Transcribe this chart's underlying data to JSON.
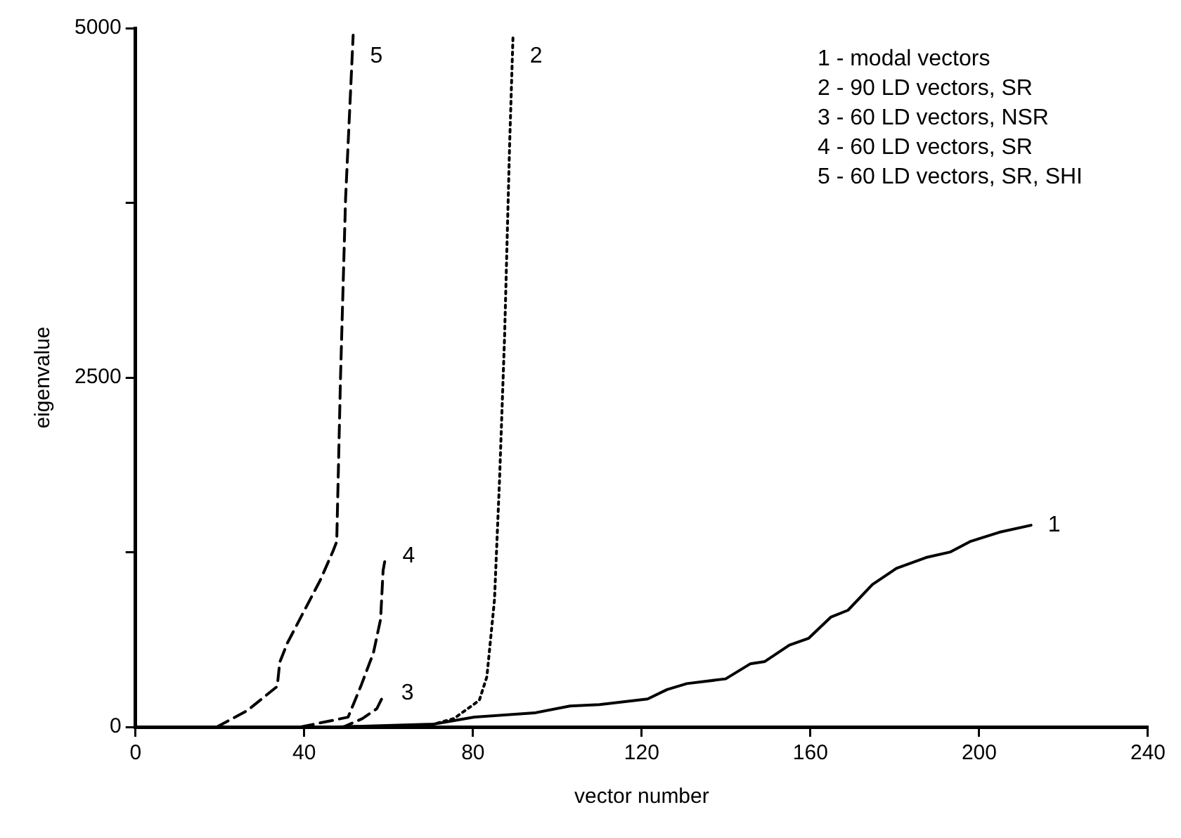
{
  "chart_data": {
    "type": "line",
    "xlabel": "vector number",
    "ylabel": "eigenvalue",
    "xlim": [
      0,
      240
    ],
    "ylim": [
      0,
      5000
    ],
    "xticks": [
      0,
      40,
      80,
      120,
      160,
      200,
      240
    ],
    "yticks": [
      0,
      {
        "value": 1250,
        "label": null
      },
      2500,
      {
        "value": 3750,
        "label": null
      },
      5000
    ],
    "grid": false,
    "legend": false,
    "marker": "none",
    "annotations": [
      "1 - modal vectors",
      "2 - 90 LD vectors, SR",
      "3 - 60 LD vectors, NSR",
      "4 - 60 LD vectors, SR",
      "5 - 60 LD vectors, SR, SHI"
    ],
    "series": [
      {
        "name": "1",
        "color": "#000000",
        "line_style": "solid",
        "x": [
          47.8,
          70.7,
          80.3,
          94.6,
          103,
          110,
          121.4,
          126,
          130.7,
          139.9,
          145.7,
          149.2,
          155,
          159.6,
          164.8,
          168.9,
          174.7,
          180.4,
          187.4,
          193.2,
          197.8,
          204.8,
          212.3
        ],
        "values": [
          0,
          20,
          70,
          100,
          150,
          160,
          200,
          267,
          310,
          344,
          451,
          468,
          585,
          635,
          785,
          835,
          1019,
          1135,
          1212,
          1252,
          1326,
          1393,
          1443
        ]
      },
      {
        "name": "2",
        "color": "#000000",
        "line_style": "dotted",
        "x": [
          68.3,
          75.5,
          81.5,
          83.3,
          85.1,
          86.3,
          87.5,
          88.7,
          89.5
        ],
        "values": [
          0,
          60,
          190,
          360,
          910,
          1770,
          2800,
          4180,
          4950
        ]
      },
      {
        "name": "3",
        "color": "#000000",
        "line_style": "dashed",
        "x": [
          39.2,
          49.3,
          53.8,
          57.2,
          59
        ],
        "values": [
          0,
          0,
          60,
          130,
          240
        ]
      },
      {
        "name": "4",
        "color": "#000000",
        "line_style": "dashed",
        "x": [
          39.2,
          50.4,
          53.4,
          56.4,
          58.1,
          58.7,
          59.3
        ],
        "values": [
          0,
          70,
          290,
          530,
          770,
          1120,
          1220
        ]
      },
      {
        "name": "5",
        "color": "#000000",
        "line_style": "dashed",
        "x": [
          19.3,
          26.5,
          33.6,
          34.2,
          36,
          39.6,
          43.8,
          46.8,
          47.7,
          48.6,
          49.8,
          51.6
        ],
        "values": [
          0,
          117,
          290,
          463,
          600,
          808,
          1050,
          1256,
          1325,
          2500,
          3780,
          4950
        ]
      }
    ]
  }
}
